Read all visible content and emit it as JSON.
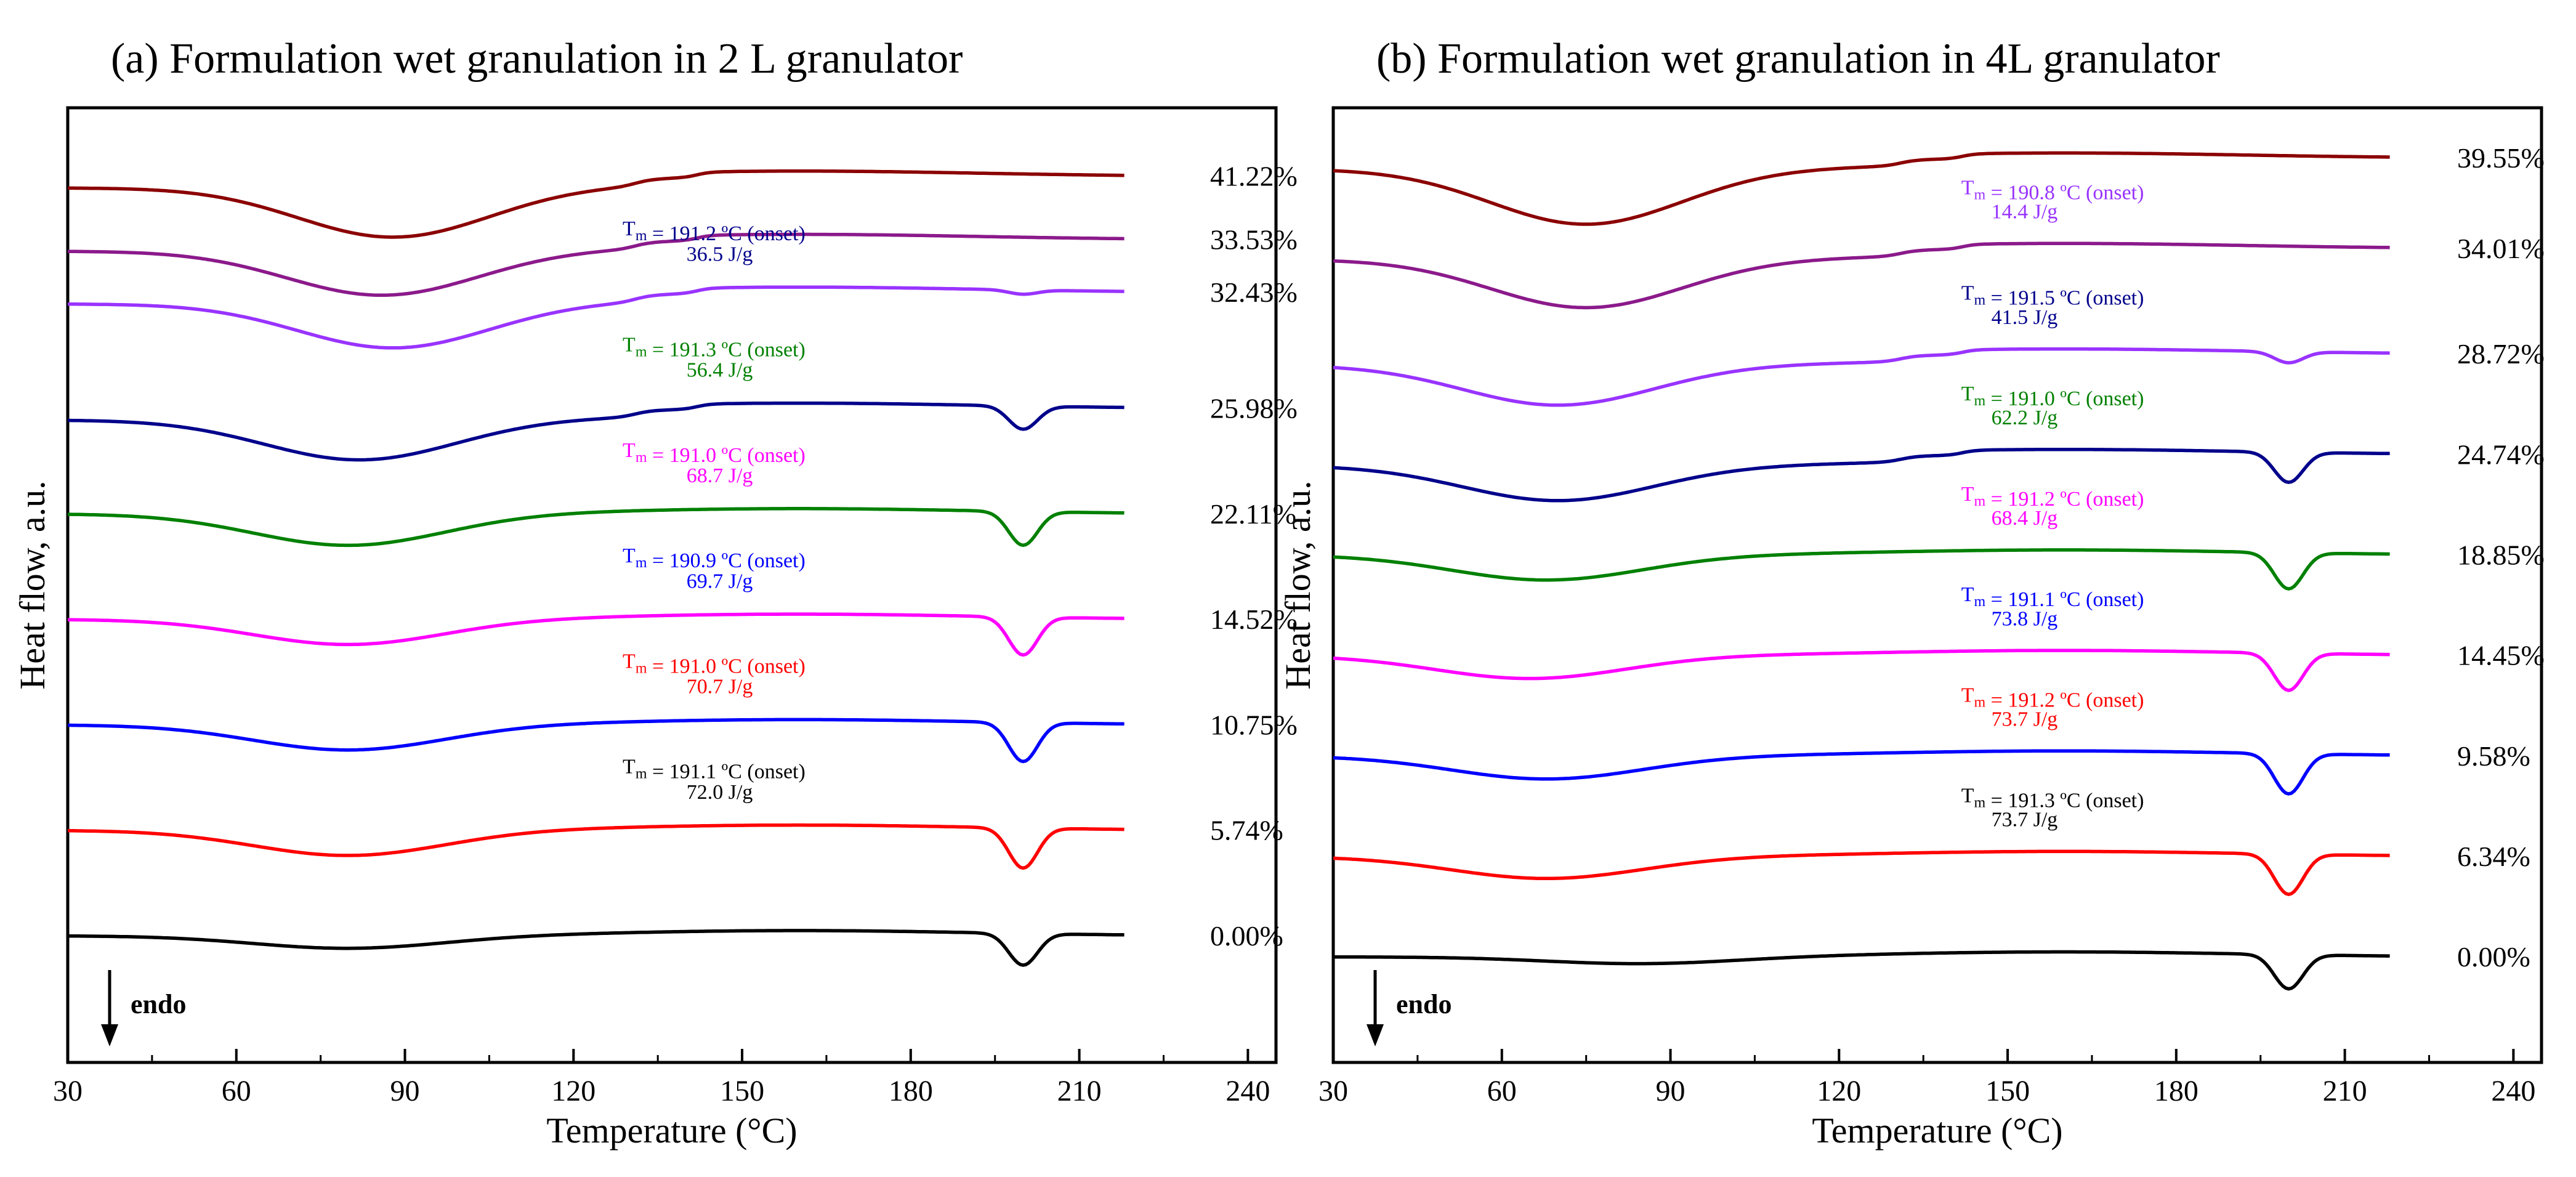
{
  "chart_data": [
    {
      "type": "line",
      "title": "(a) Formulation wet granulation in 2 L granulator",
      "xlabel": "Temperature (°C)",
      "ylabel": "Heat flow, a.u.",
      "xlim": [
        30,
        245
      ],
      "xticks": [
        "30",
        "60",
        "90",
        "120",
        "150",
        "180",
        "210",
        "240"
      ],
      "endo_label": "endo",
      "series": [
        {
          "name": "0.00%",
          "color": "#000000",
          "baseline": 0.0,
          "dip_temp": 80,
          "dip_depth": 0.12,
          "melt": true,
          "melt_depth": 0.3,
          "tm_label": "",
          "dh_label": ""
        },
        {
          "name": "5.74%",
          "color": "#ff0000",
          "baseline": 1.0,
          "dip_temp": 80,
          "dip_depth": 0.24,
          "melt": true,
          "melt_depth": 0.38,
          "tm_label": "T<sub>m</sub> = 191.1 ºC (onset)",
          "dh_label": "72.0 J/g",
          "tm_color": "#000000",
          "dh_color": "#000000"
        },
        {
          "name": "10.75%",
          "color": "#0000ff",
          "baseline": 2.0,
          "dip_temp": 80,
          "dip_depth": 0.24,
          "melt": true,
          "melt_depth": 0.37,
          "tm_label": "T<sub>m</sub> = 191.0 ºC (onset)",
          "dh_label": "70.7 J/g",
          "tm_color": "#ff0000",
          "dh_color": "#ff0000"
        },
        {
          "name": "14.52%",
          "color": "#ff00ff",
          "baseline": 3.0,
          "dip_temp": 80,
          "dip_depth": 0.24,
          "melt": true,
          "melt_depth": 0.36,
          "tm_label": "T<sub>m</sub> = 190.9 ºC (onset)",
          "dh_label": "69.7 J/g",
          "tm_color": "#0000ff",
          "dh_color": "#0000ff"
        },
        {
          "name": "22.11%",
          "color": "#008000",
          "baseline": 4.0,
          "dip_temp": 80,
          "dip_depth": 0.3,
          "melt": true,
          "melt_depth": 0.32,
          "tm_label": "T<sub>m</sub> = 191.0 ºC (onset)",
          "dh_label": "68.7 J/g",
          "tm_color": "#ff00ff",
          "dh_color": "#ff00ff"
        },
        {
          "name": "25.98%",
          "color": "#00008b",
          "baseline": 5.0,
          "dip_temp": 82,
          "dip_depth": 0.38,
          "melt": true,
          "melt_depth": 0.22,
          "tm_label": "T<sub>m</sub> = 191.3 ºC (onset)",
          "dh_label": "56.4 J/g",
          "tm_color": "#008000",
          "dh_color": "#008000"
        },
        {
          "name": "32.43%",
          "color": "#9933ff",
          "baseline": 6.1,
          "dip_temp": 88,
          "dip_depth": 0.42,
          "melt": true,
          "melt_depth": 0.04,
          "tm_label": "T<sub>m</sub> = 191.2 ºC (onset)",
          "dh_label": "36.5 J/g",
          "tm_color": "#00008b",
          "dh_color": "#00008b"
        },
        {
          "name": "33.53%",
          "color": "#8b1a8b",
          "baseline": 6.6,
          "dip_temp": 86,
          "dip_depth": 0.42,
          "melt": false,
          "melt_depth": 0,
          "tm_label": "",
          "dh_label": ""
        },
        {
          "name": "41.22%",
          "color": "#8b0000",
          "baseline": 7.2,
          "dip_temp": 88,
          "dip_depth": 0.47,
          "melt": false,
          "melt_depth": 0,
          "tm_label": "",
          "dh_label": ""
        }
      ]
    },
    {
      "type": "line",
      "title": "(b) Formulation wet granulation in 4L granulator",
      "xlabel": "Temperature (°C)",
      "ylabel": "Heat flow, a.u.",
      "xlim": [
        30,
        245
      ],
      "xticks": [
        "30",
        "60",
        "90",
        "120",
        "150",
        "180",
        "210",
        "240"
      ],
      "endo_label": "endo",
      "series": [
        {
          "name": "0.00%",
          "color": "#000000",
          "baseline": 0.0,
          "dip_temp": 85,
          "dip_depth": 0.07,
          "melt": true,
          "melt_depth": 0.34,
          "tm_label": "",
          "dh_label": ""
        },
        {
          "name": "6.34%",
          "color": "#ff0000",
          "baseline": 1.0,
          "dip_temp": 68,
          "dip_depth": 0.22,
          "melt": true,
          "melt_depth": 0.4,
          "tm_label": "T<sub>m</sub> = 191.3 ºC (onset)",
          "dh_label": "73.7 J/g",
          "tm_color": "#000000",
          "dh_color": "#000000"
        },
        {
          "name": "9.58%",
          "color": "#0000ff",
          "baseline": 2.0,
          "dip_temp": 68,
          "dip_depth": 0.23,
          "melt": true,
          "melt_depth": 0.4,
          "tm_label": "T<sub>m</sub> = 191.2 ºC (onset)",
          "dh_label": "73.7 J/g",
          "tm_color": "#ff0000",
          "dh_color": "#ff0000"
        },
        {
          "name": "14.45%",
          "color": "#ff00ff",
          "baseline": 3.0,
          "dip_temp": 65,
          "dip_depth": 0.23,
          "melt": true,
          "melt_depth": 0.37,
          "tm_label": "T<sub>m</sub> = 191.1 ºC (onset)",
          "dh_label": "73.8 J/g",
          "tm_color": "#0000ff",
          "dh_color": "#0000ff"
        },
        {
          "name": "18.85%",
          "color": "#008000",
          "baseline": 4.0,
          "dip_temp": 68,
          "dip_depth": 0.25,
          "melt": true,
          "melt_depth": 0.36,
          "tm_label": "T<sub>m</sub> = 191.2 ºC (onset)",
          "dh_label": "68.4 J/g",
          "tm_color": "#ff00ff",
          "dh_color": "#ff00ff"
        },
        {
          "name": "24.74%",
          "color": "#00008b",
          "baseline": 5.0,
          "dip_temp": 70,
          "dip_depth": 0.35,
          "melt": true,
          "melt_depth": 0.3,
          "tm_label": "T<sub>m</sub> = 191.0 ºC (onset)",
          "dh_label": "62.2 J/g",
          "tm_color": "#008000",
          "dh_color": "#008000"
        },
        {
          "name": "28.72%",
          "color": "#9933ff",
          "baseline": 6.0,
          "dip_temp": 70,
          "dip_depth": 0.4,
          "melt": true,
          "melt_depth": 0.11,
          "tm_label": "T<sub>m</sub> = 191.5 ºC (onset)",
          "dh_label": "41.5 J/g",
          "tm_color": "#00008b",
          "dh_color": "#00008b"
        },
        {
          "name": "34.01%",
          "color": "#8b1a8b",
          "baseline": 7.05,
          "dip_temp": 75,
          "dip_depth": 0.48,
          "melt": false,
          "melt_depth": 0,
          "tm_label": "T<sub>m</sub> = 190.8 ºC (onset)",
          "dh_label": "14.4 J/g",
          "tm_color": "#9933ff",
          "dh_color": "#9933ff"
        },
        {
          "name": "39.55%",
          "color": "#8b0000",
          "baseline": 7.95,
          "dip_temp": 75,
          "dip_depth": 0.55,
          "melt": false,
          "melt_depth": 0,
          "tm_label": "",
          "dh_label": ""
        }
      ]
    }
  ]
}
